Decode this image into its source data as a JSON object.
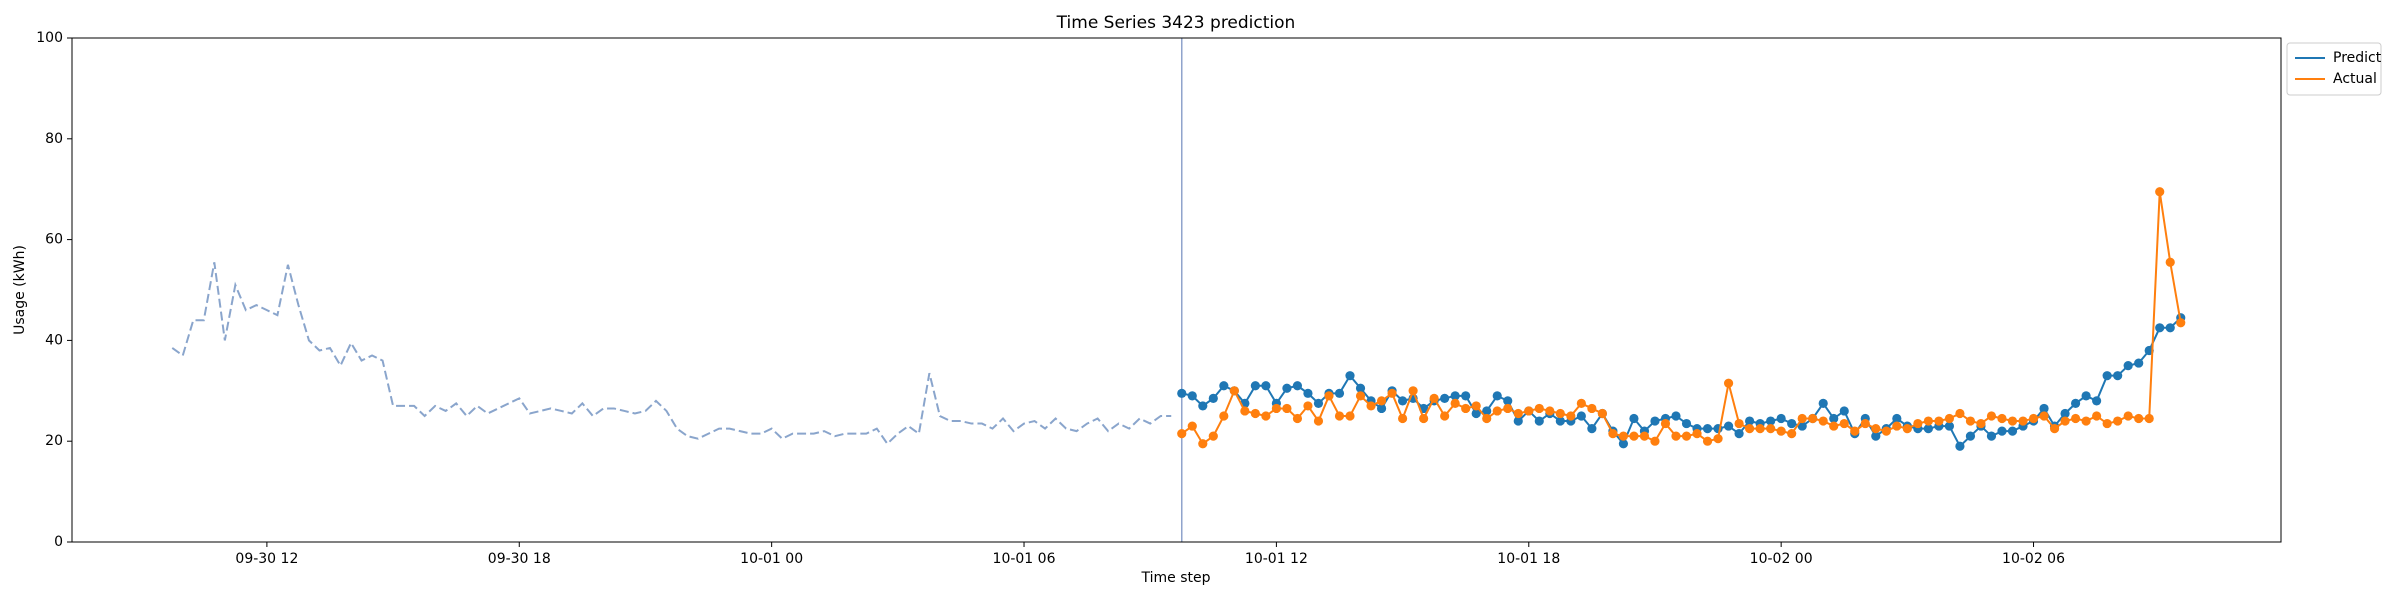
{
  "chart_data": {
    "type": "line",
    "title": "Time Series 3423 prediction",
    "xlabel": "Time step",
    "ylabel": "Usage (kWh)",
    "xlim": [
      "09-30 07:22",
      "10-02 11:53"
    ],
    "xticks": [
      "09-30 12",
      "09-30 18",
      "10-01 00",
      "10-01 06",
      "10-01 12",
      "10-01 18",
      "10-02 00",
      "10-02 06"
    ],
    "ylim": [
      0,
      100
    ],
    "yticks": [
      0,
      20,
      40,
      60,
      80,
      100
    ],
    "legend": "outside upper right",
    "split": "10-01 09:45",
    "split_color": "#8fa3cc",
    "history": {
      "color": "#8aa5cc",
      "style": "dashed",
      "x": [
        "09-30 09:45",
        "09-30 10:00",
        "09-30 10:15",
        "09-30 10:30",
        "09-30 10:45",
        "09-30 11:00",
        "09-30 11:15",
        "09-30 11:30",
        "09-30 11:45",
        "09-30 12:00",
        "09-30 12:15",
        "09-30 12:30",
        "09-30 12:45",
        "09-30 13:00",
        "09-30 13:15",
        "09-30 13:30",
        "09-30 13:45",
        "09-30 14:00",
        "09-30 14:15",
        "09-30 14:30",
        "09-30 14:45",
        "09-30 15:00",
        "09-30 15:15",
        "09-30 15:30",
        "09-30 15:45",
        "09-30 16:00",
        "09-30 16:15",
        "09-30 16:30",
        "09-30 16:45",
        "09-30 17:00",
        "09-30 17:15",
        "09-30 17:30",
        "09-30 17:45",
        "09-30 18:00",
        "09-30 18:15",
        "09-30 18:30",
        "09-30 18:45",
        "09-30 19:00",
        "09-30 19:15",
        "09-30 19:30",
        "09-30 19:45",
        "09-30 20:00",
        "09-30 20:15",
        "09-30 20:30",
        "09-30 20:45",
        "09-30 21:00",
        "09-30 21:15",
        "09-30 21:30",
        "09-30 21:45",
        "09-30 22:00",
        "09-30 22:15",
        "09-30 22:30",
        "09-30 22:45",
        "09-30 23:00",
        "09-30 23:15",
        "09-30 23:30",
        "09-30 23:45",
        "10-01 00:00",
        "10-01 00:15",
        "10-01 00:30",
        "10-01 00:45",
        "10-01 01:00",
        "10-01 01:15",
        "10-01 01:30",
        "10-01 01:45",
        "10-01 02:00",
        "10-01 02:15",
        "10-01 02:30",
        "10-01 02:45",
        "10-01 03:00",
        "10-01 03:15",
        "10-01 03:30",
        "10-01 03:45",
        "10-01 04:00",
        "10-01 04:15",
        "10-01 04:30",
        "10-01 04:45",
        "10-01 05:00",
        "10-01 05:15",
        "10-01 05:30",
        "10-01 05:45",
        "10-01 06:00",
        "10-01 06:15",
        "10-01 06:30",
        "10-01 06:45",
        "10-01 07:00",
        "10-01 07:15",
        "10-01 07:30",
        "10-01 07:45",
        "10-01 08:00",
        "10-01 08:15",
        "10-01 08:30",
        "10-01 08:45",
        "10-01 09:00",
        "10-01 09:15",
        "10-01 09:30"
      ],
      "values": [
        38.5,
        37,
        44,
        44,
        55.5,
        40,
        51,
        46,
        47,
        46,
        45,
        55,
        47,
        40,
        38,
        38.5,
        35,
        39.5,
        36,
        37,
        36,
        27,
        27,
        27,
        25,
        27,
        26,
        27.5,
        25,
        27,
        25.5,
        26.5,
        27.5,
        28.5,
        25.5,
        26,
        26.5,
        26,
        25.5,
        27.5,
        25,
        26.5,
        26.5,
        26,
        25.5,
        26,
        28,
        26,
        22.5,
        21,
        20.5,
        21.5,
        22.5,
        22.5,
        22,
        21.5,
        21.5,
        22.5,
        20.5,
        21.5,
        21.5,
        21.5,
        22,
        21,
        21.5,
        21.5,
        21.5,
        22.5,
        19.5,
        21.5,
        23,
        21.5,
        33.5,
        25,
        24,
        24,
        23.5,
        23.5,
        22.5,
        24.5,
        22,
        23.5,
        24,
        22.5,
        24.5,
        22.5,
        22,
        23.5,
        24.5,
        22,
        23.5,
        22.5,
        24.5,
        23.5,
        25,
        25
      ]
    },
    "x": [
      "10-01 09:45",
      "10-01 10:00",
      "10-01 10:15",
      "10-01 10:30",
      "10-01 10:45",
      "10-01 11:00",
      "10-01 11:15",
      "10-01 11:30",
      "10-01 11:45",
      "10-01 12:00",
      "10-01 12:15",
      "10-01 12:30",
      "10-01 12:45",
      "10-01 13:00",
      "10-01 13:15",
      "10-01 13:30",
      "10-01 13:45",
      "10-01 14:00",
      "10-01 14:15",
      "10-01 14:30",
      "10-01 14:45",
      "10-01 15:00",
      "10-01 15:15",
      "10-01 15:30",
      "10-01 15:45",
      "10-01 16:00",
      "10-01 16:15",
      "10-01 16:30",
      "10-01 16:45",
      "10-01 17:00",
      "10-01 17:15",
      "10-01 17:30",
      "10-01 17:45",
      "10-01 18:00",
      "10-01 18:15",
      "10-01 18:30",
      "10-01 18:45",
      "10-01 19:00",
      "10-01 19:15",
      "10-01 19:30",
      "10-01 19:45",
      "10-01 20:00",
      "10-01 20:15",
      "10-01 20:30",
      "10-01 20:45",
      "10-01 21:00",
      "10-01 21:15",
      "10-01 21:30",
      "10-01 21:45",
      "10-01 22:00",
      "10-01 22:15",
      "10-01 22:30",
      "10-01 22:45",
      "10-01 23:00",
      "10-01 23:15",
      "10-01 23:30",
      "10-01 23:45",
      "10-02 00:00",
      "10-02 00:15",
      "10-02 00:30",
      "10-02 00:45",
      "10-02 01:00",
      "10-02 01:15",
      "10-02 01:30",
      "10-02 01:45",
      "10-02 02:00",
      "10-02 02:15",
      "10-02 02:30",
      "10-02 02:45",
      "10-02 03:00",
      "10-02 03:15",
      "10-02 03:30",
      "10-02 03:45",
      "10-02 04:00",
      "10-02 04:15",
      "10-02 04:30",
      "10-02 04:45",
      "10-02 05:00",
      "10-02 05:15",
      "10-02 05:30",
      "10-02 05:45",
      "10-02 06:00",
      "10-02 06:15",
      "10-02 06:30",
      "10-02 06:45",
      "10-02 07:00",
      "10-02 07:15",
      "10-02 07:30",
      "10-02 07:45",
      "10-02 08:00",
      "10-02 08:15",
      "10-02 08:30",
      "10-02 08:45",
      "10-02 09:00",
      "10-02 09:15",
      "10-02 09:30"
    ],
    "series": [
      {
        "name": "Predict",
        "color": "#1f77b4",
        "values": [
          29.5,
          29,
          27,
          28.5,
          31,
          30,
          27.5,
          31,
          31,
          27.5,
          30.5,
          31,
          29.5,
          27.5,
          29.5,
          29.5,
          33,
          30.5,
          28,
          26.5,
          30,
          28,
          28.5,
          26.5,
          28,
          28.5,
          29,
          29,
          25.5,
          26,
          29,
          28,
          24,
          26,
          24,
          25.5,
          24,
          24,
          25,
          22.5,
          25.5,
          22,
          19.5,
          24.5,
          22,
          24,
          24.5,
          25,
          23.5,
          22.5,
          22.5,
          22.5,
          23,
          21.5,
          24,
          23.5,
          24,
          24.5,
          23.5,
          23,
          24.5,
          27.5,
          24.5,
          26,
          21.5,
          24.5,
          21,
          22.5,
          24.5,
          23,
          22.5,
          22.5,
          23,
          23,
          19,
          21,
          23,
          21,
          22,
          22,
          23,
          24,
          26.5,
          23,
          25.5,
          27.5,
          29,
          28,
          33,
          33,
          35,
          35.5,
          38,
          42.5,
          42.5,
          44.5
        ]
      },
      {
        "name": "Actual",
        "color": "#ff7f0e",
        "values": [
          21.5,
          23,
          19.5,
          21,
          25,
          30,
          26,
          25.5,
          25,
          26.5,
          26.5,
          24.5,
          27,
          24,
          29,
          25,
          25,
          29,
          27,
          28,
          29.5,
          24.5,
          30,
          24.5,
          28.5,
          25,
          27.5,
          26.5,
          27,
          24.5,
          26,
          26.5,
          25.5,
          26,
          26.5,
          26,
          25.5,
          25,
          27.5,
          26.5,
          25.5,
          21.5,
          21,
          21,
          21,
          20,
          23.5,
          21,
          21,
          21.5,
          20,
          20.5,
          31.5,
          23.5,
          22.5,
          22.5,
          22.5,
          22,
          21.5,
          24.5,
          24.5,
          24,
          23,
          23.5,
          22,
          23.5,
          22.5,
          22,
          23,
          22.5,
          23.5,
          24,
          24,
          24.5,
          25.5,
          24,
          23.5,
          25,
          24.5,
          24,
          24,
          24.5,
          25,
          22.5,
          24,
          24.5,
          24,
          25,
          23.5,
          24,
          25,
          24.5,
          24.5,
          69.5,
          55.5,
          43.5
        ]
      }
    ]
  }
}
